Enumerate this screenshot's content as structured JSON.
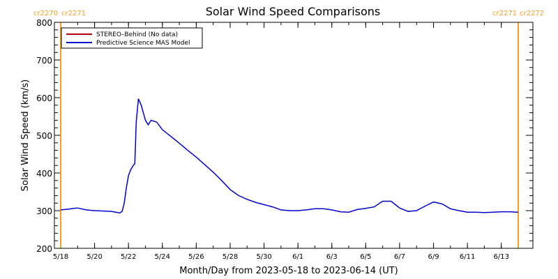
{
  "chart_data": {
    "type": "line",
    "title": "Solar Wind Speed Comparisons",
    "xlabel": "Month/Day from 2023-05-18 to 2023-06-14 (UT)",
    "ylabel": "Solar Wind Speed (km/s)",
    "xlim": [
      "2023-05-18",
      "2023-06-14"
    ],
    "ylim": [
      200,
      800
    ],
    "x_tick_labels": [
      "5/18",
      "5/20",
      "5/22",
      "5/24",
      "5/26",
      "5/28",
      "5/30",
      "6/1",
      "6/3",
      "6/5",
      "6/7",
      "6/9",
      "6/11",
      "6/13"
    ],
    "x_tick_values": [
      "2023-05-18",
      "2023-05-20",
      "2023-05-22",
      "2023-05-24",
      "2023-05-26",
      "2023-05-28",
      "2023-05-30",
      "2023-06-01",
      "2023-06-03",
      "2023-06-05",
      "2023-06-07",
      "2023-06-09",
      "2023-06-11",
      "2023-06-13"
    ],
    "y_ticks": [
      200,
      300,
      400,
      500,
      600,
      700,
      800
    ],
    "legend_position": "top-left",
    "series": [
      {
        "name": "STEREO–Behind (No data)",
        "color": "#b00000",
        "x": [],
        "y": []
      },
      {
        "name": "Predictive Science MAS Model",
        "color": "#0000d0",
        "x": [
          "2023-05-18",
          "2023-05-18T12:00",
          "2023-05-18T18:00",
          "2023-05-19",
          "2023-05-19T12:00",
          "2023-05-20",
          "2023-05-20T12:00",
          "2023-05-21",
          "2023-05-21T06:00",
          "2023-05-21T12:00",
          "2023-05-21T15:00",
          "2023-05-21T18:00",
          "2023-05-21T21:00",
          "2023-05-22",
          "2023-05-22T03:00",
          "2023-05-22T06:00",
          "2023-05-22T09:00",
          "2023-05-22T11:00",
          "2023-05-22T14:00",
          "2023-05-22T18:00",
          "2023-05-23",
          "2023-05-23T04:00",
          "2023-05-23T08:00",
          "2023-05-23T16:00",
          "2023-05-24",
          "2023-05-24T12:00",
          "2023-05-25",
          "2023-05-25T12:00",
          "2023-05-26",
          "2023-05-26T12:00",
          "2023-05-27",
          "2023-05-27T12:00",
          "2023-05-28",
          "2023-05-28T12:00",
          "2023-05-29",
          "2023-05-29T12:00",
          "2023-05-30",
          "2023-05-30T12:00",
          "2023-05-31",
          "2023-05-31T12:00",
          "2023-06-01",
          "2023-06-01T12:00",
          "2023-06-02",
          "2023-06-02T12:00",
          "2023-06-03",
          "2023-06-03T12:00",
          "2023-06-04",
          "2023-06-04T12:00",
          "2023-06-05",
          "2023-06-05T12:00",
          "2023-06-06",
          "2023-06-06T12:00",
          "2023-06-07",
          "2023-06-07T12:00",
          "2023-06-08",
          "2023-06-08T12:00",
          "2023-06-09",
          "2023-06-09T12:00",
          "2023-06-10",
          "2023-06-10T12:00",
          "2023-06-11",
          "2023-06-11T12:00",
          "2023-06-12",
          "2023-06-12T12:00",
          "2023-06-13",
          "2023-06-13T12:00",
          "2023-06-14"
        ],
        "y": [
          302,
          304,
          306,
          307,
          302,
          300,
          299,
          298,
          296,
          294,
          298,
          320,
          360,
          393,
          408,
          418,
          425,
          535,
          597,
          580,
          540,
          528,
          540,
          535,
          515,
          497,
          479,
          460,
          442,
          422,
          402,
          380,
          356,
          340,
          330,
          322,
          316,
          310,
          302,
          300,
          300,
          302,
          305,
          305,
          302,
          297,
          296,
          303,
          306,
          310,
          325,
          325,
          307,
          298,
          300,
          312,
          323,
          318,
          305,
          300,
          296,
          296,
          295,
          296,
          297,
          297,
          296
        ]
      }
    ],
    "carrington_labels": [
      {
        "text": "cr2270",
        "x": "2023-05-18"
      },
      {
        "text": "cr2271",
        "x": "2023-05-18"
      },
      {
        "text": "cr2271",
        "x": "2023-06-14"
      },
      {
        "text": "cr2272",
        "x": "2023-06-14"
      }
    ],
    "colors": {
      "frame": "#000000",
      "rotation_lines": "#f5a01e",
      "model": "#0000d0",
      "stereo": "#b00000"
    }
  }
}
